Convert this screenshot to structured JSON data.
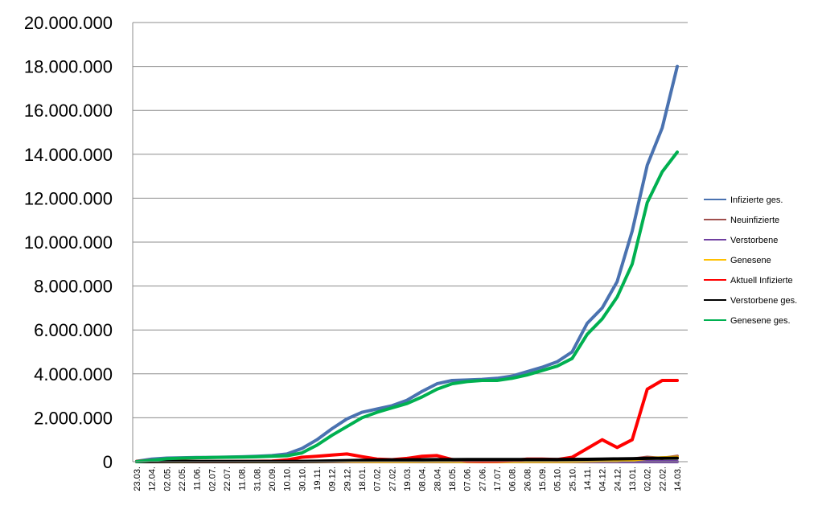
{
  "chart_data": {
    "type": "line",
    "title": "",
    "xlabel": "",
    "ylabel": "",
    "ylim": [
      0,
      20000000
    ],
    "yticks": [
      0,
      2000000,
      4000000,
      6000000,
      8000000,
      10000000,
      12000000,
      14000000,
      16000000,
      18000000,
      20000000
    ],
    "ytick_labels": [
      "0",
      "2.000.000",
      "4.000.000",
      "6.000.000",
      "8.000.000",
      "10.000.000",
      "12.000.000",
      "14.000.000",
      "16.000.000",
      "18.000.000",
      "20.000.000"
    ],
    "grid": "horizontal",
    "legend_position": "right",
    "categories": [
      "23.03.",
      "12.04.",
      "02.05.",
      "22.05.",
      "11.06.",
      "02.07.",
      "22.07.",
      "11.08.",
      "31.08.",
      "20.09.",
      "10.10.",
      "30.10.",
      "19.11.",
      "09.12.",
      "29.12.",
      "18.01.",
      "07.02.",
      "27.02.",
      "19.03.",
      "08.04.",
      "28.04.",
      "18.05.",
      "07.06.",
      "27.06.",
      "17.07.",
      "06.08.",
      "26.08.",
      "15.09.",
      "05.10.",
      "25.10.",
      "14.11.",
      "04.12.",
      "24.12.",
      "13.01.",
      "02.02.",
      "22.02.",
      "14.03."
    ],
    "series": [
      {
        "name": "Infizierte ges.",
        "color": "#4a72b0",
        "values": [
          20000,
          120000,
          165000,
          180000,
          190000,
          198000,
          210000,
          225000,
          245000,
          280000,
          350000,
          600000,
          1000000,
          1500000,
          1950000,
          2250000,
          2400000,
          2550000,
          2800000,
          3200000,
          3550000,
          3700000,
          3720000,
          3750000,
          3800000,
          3900000,
          4100000,
          4300000,
          4550000,
          5000000,
          6300000,
          7000000,
          8200000,
          10500000,
          13500000,
          15200000,
          18000000
        ]
      },
      {
        "name": "Neuinfizierte",
        "color": "#a0504e",
        "values": [
          2000,
          3000,
          1000,
          500,
          500,
          500,
          700,
          1000,
          1500,
          2500,
          5000,
          15000,
          20000,
          25000,
          20000,
          12000,
          8000,
          8000,
          15000,
          20000,
          15000,
          5000,
          1000,
          500,
          2000,
          8000,
          12000,
          10000,
          8000,
          30000,
          50000,
          40000,
          60000,
          120000,
          200000,
          150000,
          250000
        ]
      },
      {
        "name": "Verstorbene",
        "color": "#7040a0",
        "values": [
          100,
          200,
          100,
          50,
          20,
          10,
          10,
          10,
          20,
          30,
          50,
          200,
          400,
          700,
          900,
          800,
          500,
          300,
          250,
          250,
          200,
          100,
          50,
          30,
          30,
          40,
          60,
          80,
          100,
          200,
          300,
          350,
          300,
          250,
          200,
          150,
          150
        ]
      },
      {
        "name": "Genesene",
        "color": "#ffc000",
        "values": [
          1000,
          3000,
          2000,
          1000,
          700,
          500,
          500,
          700,
          1000,
          1500,
          2500,
          7000,
          12000,
          18000,
          20000,
          15000,
          10000,
          8000,
          10000,
          15000,
          15000,
          8000,
          3000,
          1000,
          1000,
          5000,
          8000,
          9000,
          8000,
          15000,
          30000,
          40000,
          40000,
          80000,
          150000,
          180000,
          200000
        ]
      },
      {
        "name": "Aktuell Infizierte",
        "color": "#ff0000",
        "values": [
          15000,
          60000,
          30000,
          20000,
          10000,
          8000,
          10000,
          15000,
          20000,
          30000,
          80000,
          200000,
          250000,
          300000,
          350000,
          230000,
          120000,
          90000,
          150000,
          250000,
          280000,
          100000,
          30000,
          15000,
          20000,
          50000,
          120000,
          120000,
          100000,
          200000,
          600000,
          1000000,
          650000,
          1000000,
          3300000,
          3700000,
          3700000
        ]
      },
      {
        "name": "Verstorbene ges.",
        "color": "#000000",
        "values": [
          500,
          5000,
          7000,
          8000,
          8500,
          8700,
          8800,
          9000,
          9200,
          9500,
          10000,
          15000,
          22000,
          35000,
          50000,
          65000,
          75000,
          80000,
          85000,
          90000,
          95000,
          97000,
          98000,
          98000,
          98000,
          99000,
          100000,
          101000,
          102000,
          105000,
          110000,
          120000,
          130000,
          140000,
          150000,
          155000,
          160000
        ]
      },
      {
        "name": "Genesene ges.",
        "color": "#00b050",
        "values": [
          5000,
          60000,
          135000,
          160000,
          180000,
          190000,
          200000,
          210000,
          225000,
          250000,
          270000,
          400000,
          750000,
          1200000,
          1600000,
          2000000,
          2250000,
          2450000,
          2650000,
          2950000,
          3300000,
          3550000,
          3650000,
          3700000,
          3700000,
          3800000,
          3950000,
          4150000,
          4350000,
          4700000,
          5800000,
          6500000,
          7500000,
          9000000,
          11800000,
          13200000,
          14100000
        ]
      }
    ]
  }
}
